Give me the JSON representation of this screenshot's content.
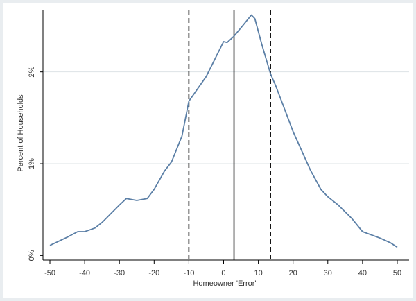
{
  "chart_data": {
    "type": "line",
    "x_label": "Homeowner 'Error'",
    "y_label": "Percent of Households",
    "x": [
      -50,
      -45,
      -42,
      -40,
      -37,
      -35,
      -30,
      -28,
      -25,
      -22,
      -20,
      -17,
      -15,
      -12,
      -10,
      -5,
      0,
      1,
      3,
      5,
      8,
      9,
      11,
      13.5,
      15,
      20,
      25,
      28,
      30,
      33,
      37,
      40,
      45,
      48,
      50
    ],
    "series": [
      {
        "color": "#5b7fa6",
        "values": [
          0.11,
          0.2,
          0.26,
          0.26,
          0.3,
          0.36,
          0.55,
          0.62,
          0.6,
          0.62,
          0.72,
          0.92,
          1.02,
          1.3,
          1.68,
          1.95,
          2.33,
          2.32,
          2.39,
          2.48,
          2.62,
          2.58,
          2.3,
          1.98,
          1.85,
          1.35,
          0.93,
          0.72,
          0.64,
          0.55,
          0.4,
          0.26,
          0.19,
          0.14,
          0.09
        ]
      }
    ],
    "reference_lines": [
      {
        "x": -10,
        "dashed": true
      },
      {
        "x": 3,
        "dashed": false
      },
      {
        "x": 13.5,
        "dashed": true
      }
    ],
    "xlim": [
      -52,
      53.4
    ],
    "ylim": [
      -0.05,
      2.67
    ],
    "xticks": [
      -50,
      -40,
      -30,
      -20,
      -10,
      0,
      10,
      20,
      30,
      40,
      50
    ],
    "yticks": [
      {
        "value": 0,
        "label": "0%"
      },
      {
        "value": 1,
        "label": "1%"
      },
      {
        "value": 2,
        "label": "2%"
      }
    ],
    "grid": true
  }
}
